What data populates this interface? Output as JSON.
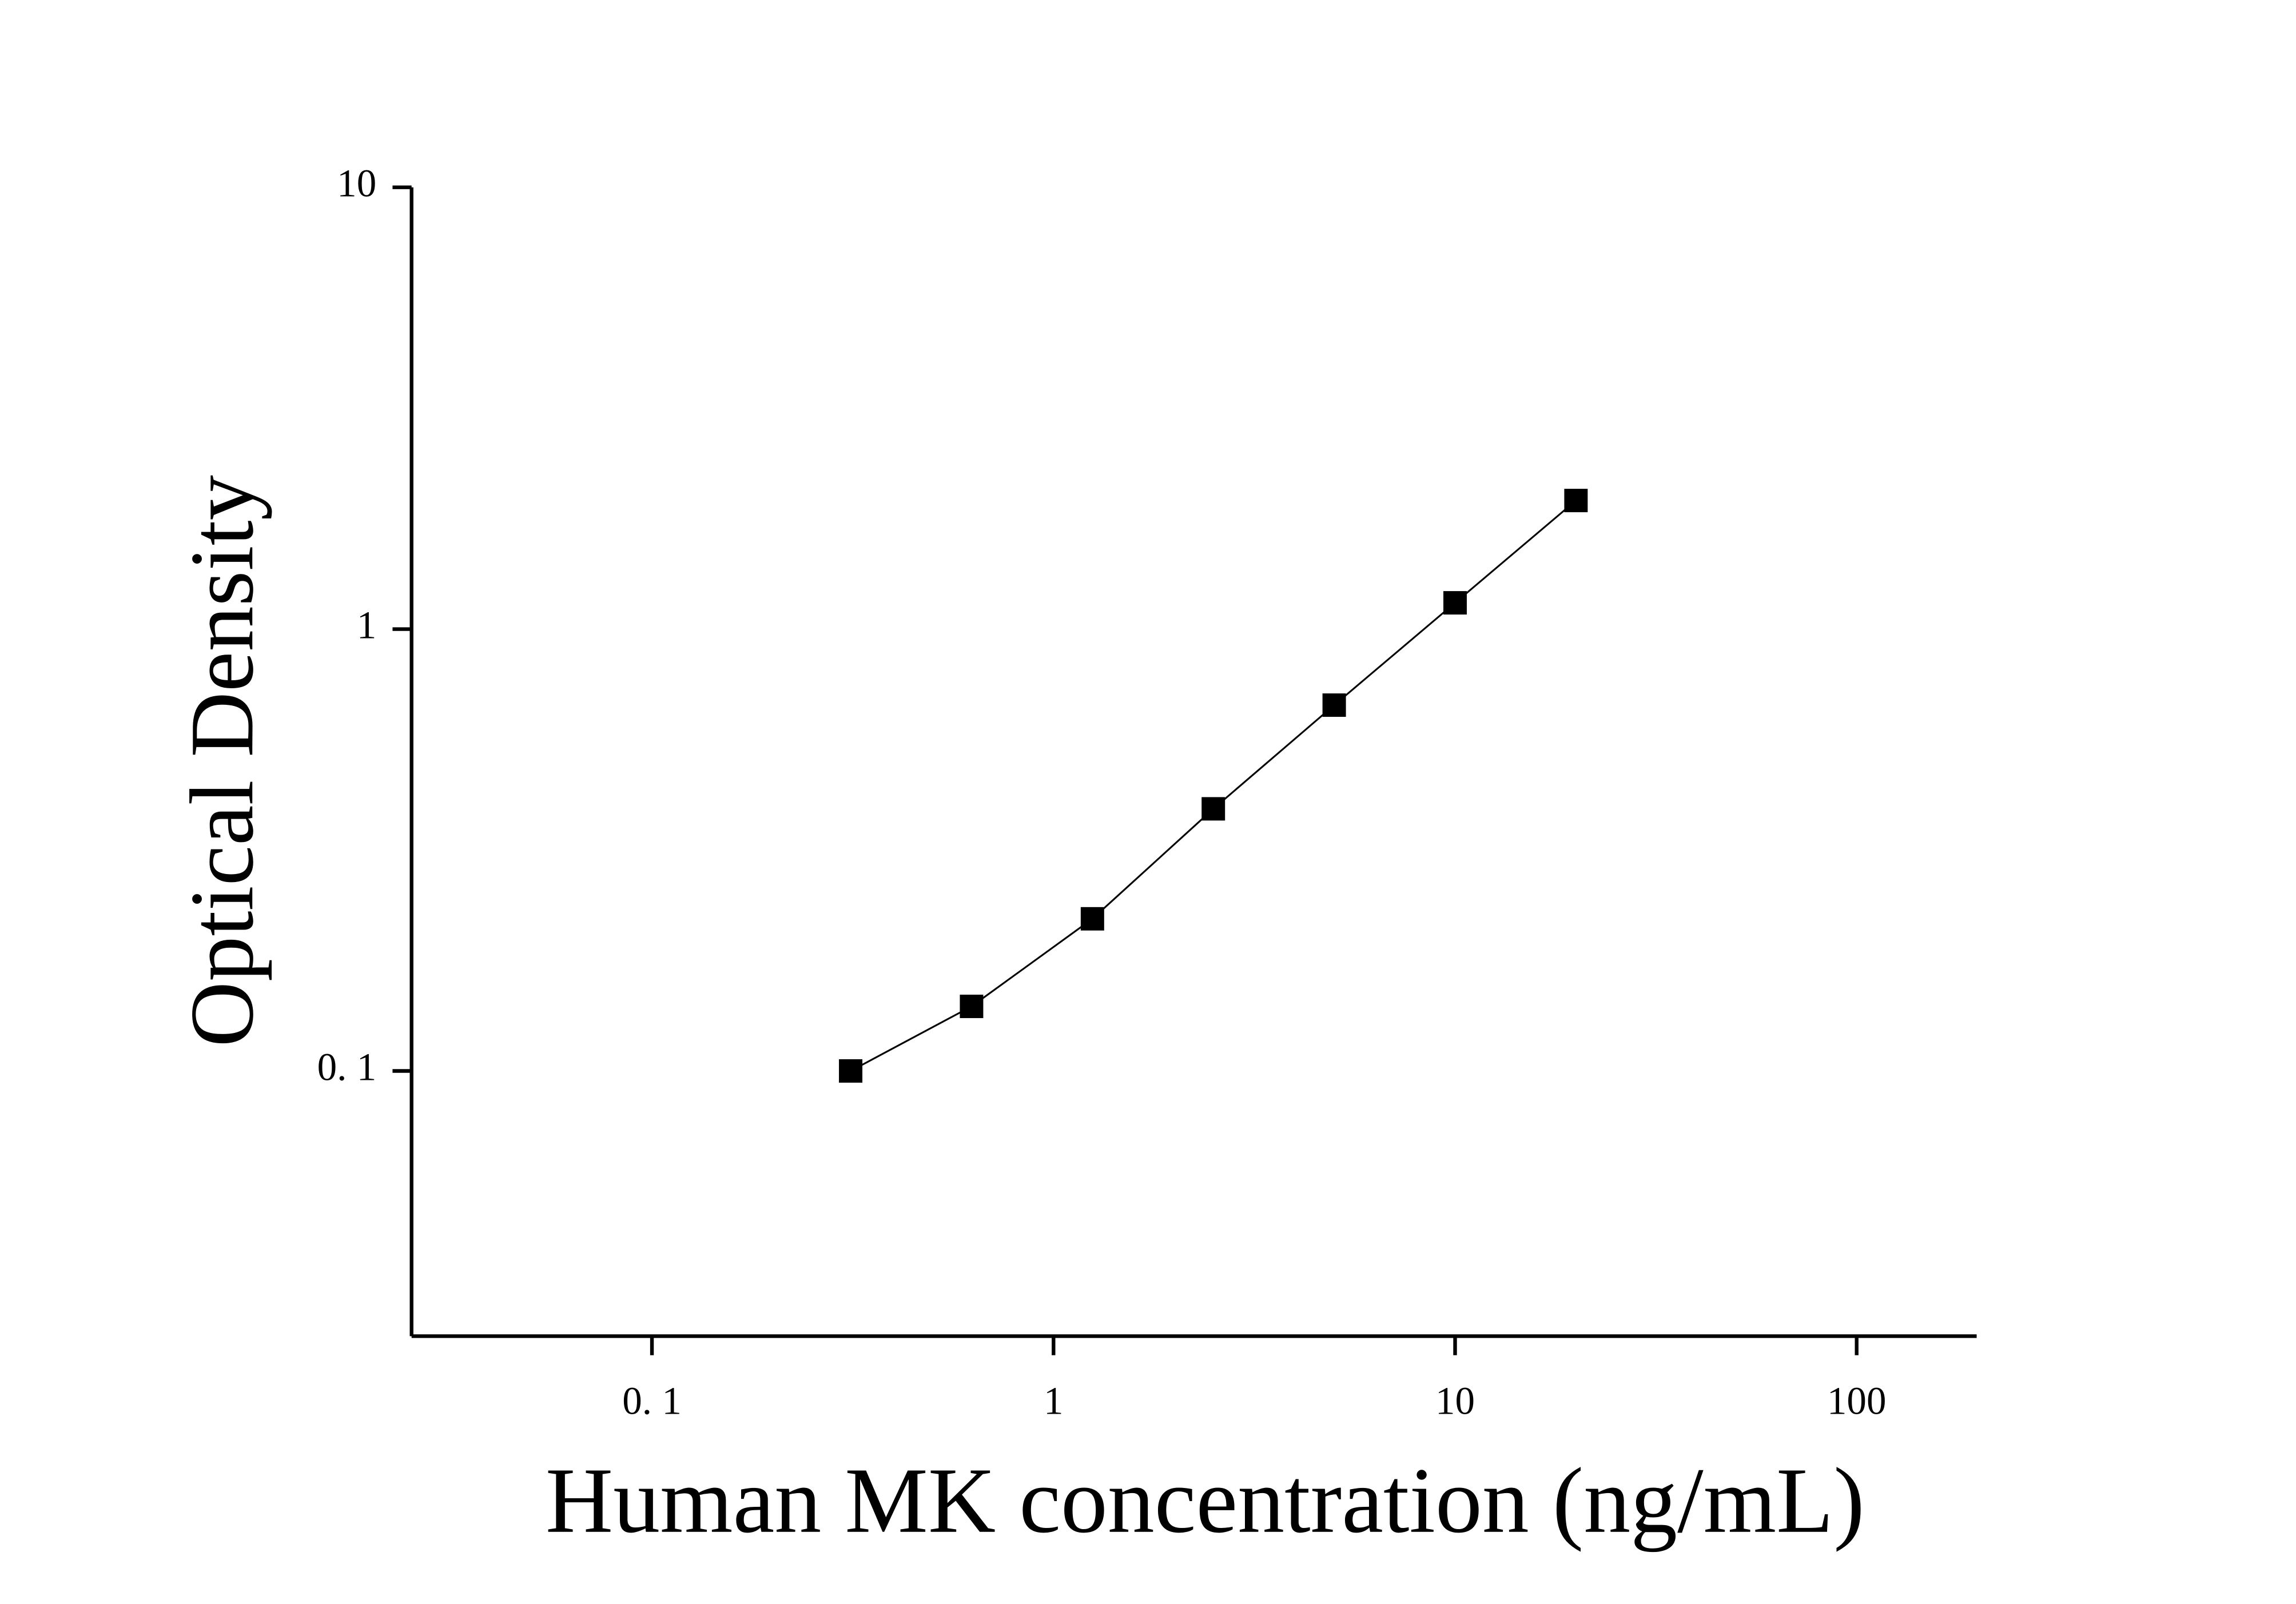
{
  "chart_data": {
    "type": "scatter",
    "x_label": "Human MK concentration (ng/mL)",
    "y_label": "Optical Density",
    "x_log": true,
    "y_log": true,
    "fit_line": true,
    "series": [
      {
        "color": "#000000",
        "x": [
          0.3125,
          0.625,
          1.25,
          2.5,
          5,
          10,
          20
        ],
        "values": [
          0.1,
          0.14,
          0.221,
          0.392,
          0.673,
          1.147,
          1.955
        ]
      }
    ],
    "xlim": [
      0.0252,
      199
    ],
    "ylim": [
      0.0251,
      10
    ],
    "xticks": [
      {
        "value": 0.1,
        "label": "0. 1"
      },
      1,
      10,
      100
    ],
    "yticks": [
      {
        "value": 0.1,
        "label": "0. 1"
      },
      1,
      10
    ]
  }
}
